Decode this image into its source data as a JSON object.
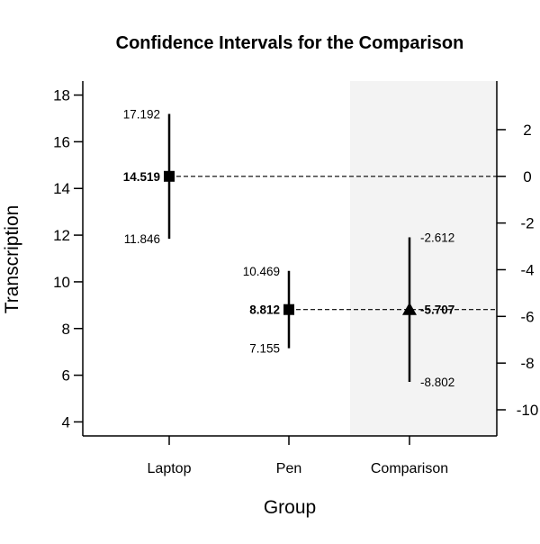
{
  "chart_data": {
    "type": "scatter",
    "title": "Confidence Intervals for the Comparison",
    "xlabel": "Group",
    "ylabel": "Transcription",
    "categories": [
      "Laptop",
      "Pen",
      "Comparison"
    ],
    "left_axis": {
      "ylim": [
        3.4,
        18.6
      ],
      "ticks": [
        4,
        6,
        8,
        10,
        12,
        14,
        16,
        18
      ]
    },
    "right_axis": {
      "ylim": [
        -10.9,
        4.3
      ],
      "ticks": [
        2,
        0,
        -2,
        -4,
        -6,
        -8,
        -10
      ],
      "offset": 14.519
    },
    "groups": [
      {
        "category": "Laptop",
        "mean": 14.519,
        "lower": 11.846,
        "upper": 17.192,
        "marker": "square",
        "labels": {
          "mean": "14.519",
          "lower": "11.846",
          "upper": "17.192"
        }
      },
      {
        "category": "Pen",
        "mean": 8.812,
        "lower": 7.155,
        "upper": 10.469,
        "marker": "square",
        "labels": {
          "mean": "8.812",
          "lower": "7.155",
          "upper": "10.469"
        }
      }
    ],
    "comparison": {
      "category": "Comparison",
      "difference": -5.707,
      "lower": -8.802,
      "upper": -2.612,
      "marker": "triangle",
      "labels": {
        "difference": "-5.707",
        "lower": "-8.802",
        "upper": "-2.612"
      }
    },
    "reference_lines": [
      {
        "left_value": 14.519,
        "right_value": 0,
        "style": "dashed"
      },
      {
        "left_value": 8.812,
        "right_value": -5.707,
        "style": "dashed"
      }
    ],
    "comparison_background": "#f3f3f3",
    "grid": false,
    "legend": "none"
  }
}
